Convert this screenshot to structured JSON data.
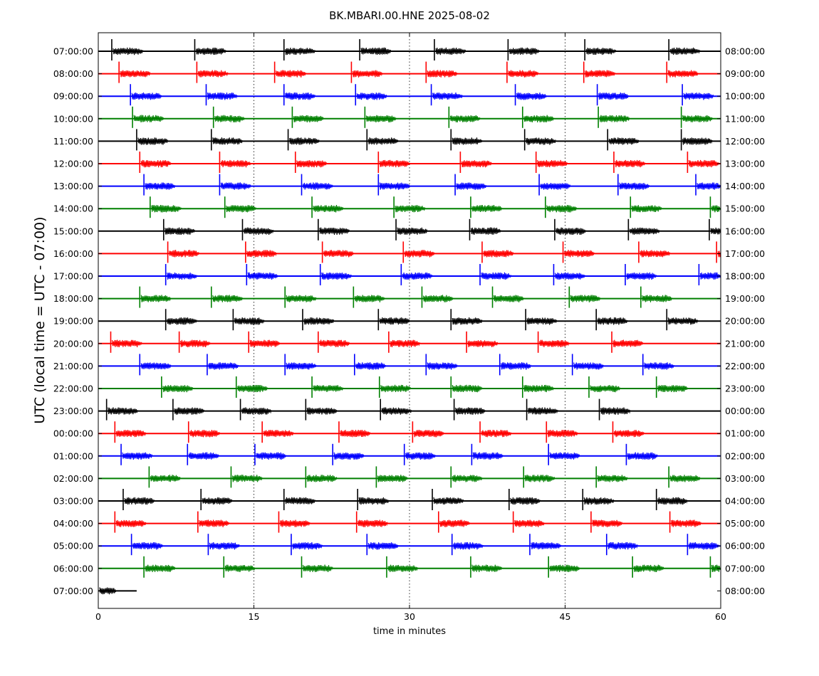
{
  "chart_data": {
    "type": "line",
    "title": "BK.MBARI.00.HNE 2025-08-02",
    "xlabel": "time in minutes",
    "ylabel": "UTC (local time = UTC - 07:00)",
    "xlim": [
      0,
      60
    ],
    "x_ticks": [
      0,
      15,
      30,
      45,
      60
    ],
    "grid": "vertical dotted at 15, 30, 45",
    "colors": [
      "#000000",
      "#ff0000",
      "#0000ff",
      "#008000"
    ],
    "left_labels": [
      "07:00:00",
      "08:00:00",
      "09:00:00",
      "10:00:00",
      "11:00:00",
      "12:00:00",
      "13:00:00",
      "14:00:00",
      "15:00:00",
      "16:00:00",
      "17:00:00",
      "18:00:00",
      "19:00:00",
      "20:00:00",
      "21:00:00",
      "22:00:00",
      "23:00:00",
      "00:00:00",
      "01:00:00",
      "02:00:00",
      "03:00:00",
      "04:00:00",
      "05:00:00",
      "06:00:00",
      "07:00:00"
    ],
    "right_labels": [
      "08:00:00",
      "09:00:00",
      "10:00:00",
      "11:00:00",
      "12:00:00",
      "13:00:00",
      "14:00:00",
      "15:00:00",
      "16:00:00",
      "17:00:00",
      "18:00:00",
      "19:00:00",
      "20:00:00",
      "21:00:00",
      "22:00:00",
      "23:00:00",
      "00:00:00",
      "01:00:00",
      "02:00:00",
      "03:00:00",
      "04:00:00",
      "05:00:00",
      "06:00:00",
      "07:00:00",
      "08:00:00"
    ],
    "last_trace_end_minute": 3.7,
    "burst_length_minutes": 3.0,
    "burst_onsets": [
      [
        1.3,
        9.3,
        17.9,
        25.2,
        32.4,
        39.5,
        46.9,
        55.0
      ],
      [
        2.0,
        9.5,
        17.0,
        24.4,
        31.6,
        39.4,
        46.8,
        54.8
      ],
      [
        3.1,
        10.4,
        17.9,
        24.8,
        32.1,
        40.2,
        48.1,
        56.3
      ],
      [
        3.3,
        11.1,
        18.7,
        25.7,
        33.8,
        40.9,
        48.2,
        56.2
      ],
      [
        3.7,
        10.9,
        18.3,
        25.9,
        34.0,
        41.1,
        49.1,
        56.2
      ],
      [
        4.0,
        11.7,
        19.0,
        27.0,
        34.9,
        42.2,
        49.7,
        56.8
      ],
      [
        4.4,
        11.7,
        19.6,
        27.0,
        34.4,
        42.5,
        50.1,
        57.6
      ],
      [
        5.0,
        12.2,
        20.6,
        28.5,
        35.9,
        43.1,
        51.3,
        59.0
      ],
      [
        6.3,
        13.9,
        21.2,
        28.7,
        35.8,
        44.0,
        51.1,
        58.9
      ],
      [
        6.7,
        14.2,
        21.6,
        29.4,
        37.0,
        44.8,
        52.1,
        59.6
      ],
      [
        6.5,
        14.3,
        21.4,
        29.2,
        36.8,
        43.9,
        50.8,
        57.9
      ],
      [
        4.0,
        10.9,
        18.0,
        24.6,
        31.2,
        38.0,
        45.4,
        52.3
      ],
      [
        6.5,
        13.0,
        19.7,
        27.0,
        34.0,
        41.2,
        48.0,
        54.8
      ],
      [
        1.2,
        7.8,
        14.5,
        21.2,
        28.0,
        35.5,
        42.4,
        49.5
      ],
      [
        4.0,
        10.5,
        18.0,
        24.7,
        31.6,
        38.7,
        45.7,
        52.5
      ],
      [
        6.1,
        13.3,
        20.6,
        27.1,
        34.0,
        40.9,
        47.3,
        53.8
      ],
      [
        0.8,
        7.2,
        13.7,
        20.0,
        27.2,
        34.3,
        41.3,
        48.3
      ],
      [
        1.6,
        8.7,
        15.8,
        23.2,
        30.3,
        36.8,
        43.2,
        49.6
      ],
      [
        2.2,
        8.6,
        15.1,
        22.6,
        29.5,
        36.0,
        43.4,
        50.9
      ],
      [
        4.9,
        12.8,
        20.0,
        26.8,
        34.0,
        41.0,
        48.0,
        55.0
      ],
      [
        2.4,
        9.9,
        17.9,
        25.0,
        32.2,
        39.6,
        46.7,
        53.8
      ],
      [
        1.6,
        9.6,
        17.4,
        24.9,
        32.8,
        40.0,
        47.5,
        55.1
      ],
      [
        3.2,
        10.6,
        18.6,
        25.9,
        34.1,
        41.6,
        49.0,
        56.8
      ],
      [
        4.4,
        12.1,
        19.6,
        27.8,
        35.9,
        43.4,
        51.5,
        59.0
      ]
    ]
  }
}
